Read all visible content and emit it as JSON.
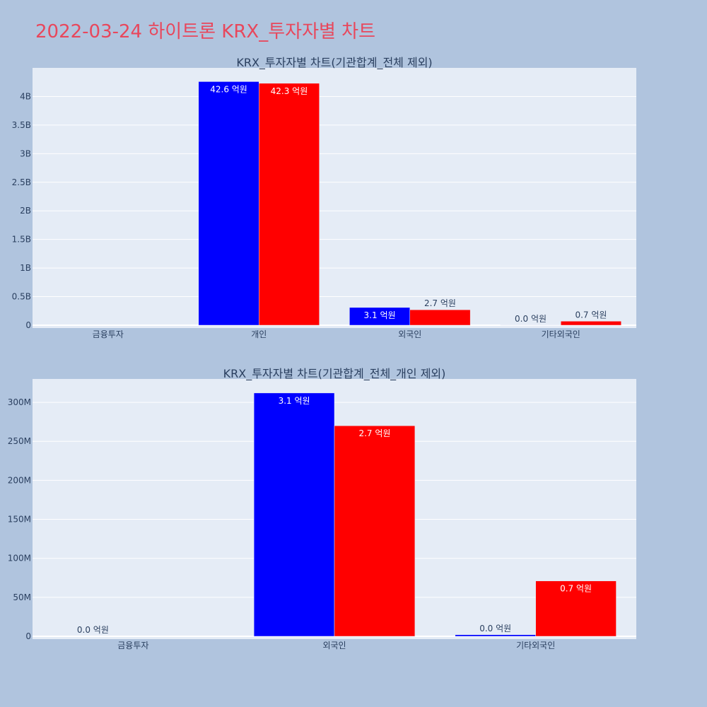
{
  "page": {
    "title": "2022-03-24 하이트론 KRX_투자자별 차트"
  },
  "colors": {
    "buy": "#0000ff",
    "sell": "#ff0000",
    "plot_bg": "#e5ecf6",
    "paper_bg": "#b0c4de",
    "title": "#e8475c"
  },
  "chart_data": [
    {
      "type": "bar",
      "title": "KRX_투자자별 차트(기관합계_전체 제외)",
      "categories": [
        "금융투자",
        "개인",
        "외국인",
        "기타외국인"
      ],
      "ylim": [
        0,
        4500000000
      ],
      "yticks": [
        0,
        500000000,
        1000000000,
        1500000000,
        2000000000,
        2500000000,
        3000000000,
        3500000000,
        4000000000
      ],
      "ytick_labels": [
        "0",
        "0.5B",
        "1B",
        "1.5B",
        "2B",
        "2.5B",
        "3B",
        "3.5B",
        "4B"
      ],
      "grid": true,
      "series": [
        {
          "color": "#0000ff",
          "values": [
            0,
            4260000000,
            310000000,
            2000000
          ],
          "labels": [
            "",
            "42.6 억원",
            "3.1 억원",
            "0.0 억원"
          ]
        },
        {
          "color": "#ff0000",
          "values": [
            0,
            4230000000,
            270000000,
            70000000
          ],
          "labels": [
            "",
            "42.3 억원",
            "2.7 억원",
            "0.7 억원"
          ]
        }
      ]
    },
    {
      "type": "bar",
      "title": "KRX_투자자별 차트(기관합계_전체_개인 제외)",
      "categories": [
        "금융투자",
        "외국인",
        "기타외국인"
      ],
      "ylim": [
        0,
        330000000
      ],
      "yticks": [
        0,
        50000000,
        100000000,
        150000000,
        200000000,
        250000000,
        300000000
      ],
      "ytick_labels": [
        "0",
        "50M",
        "100M",
        "150M",
        "200M",
        "250M",
        "300M"
      ],
      "grid": true,
      "series": [
        {
          "color": "#0000ff",
          "values": [
            0,
            312000000,
            2000000
          ],
          "labels": [
            "0.0 억원",
            "3.1 억원",
            "0.0 억원"
          ]
        },
        {
          "color": "#ff0000",
          "values": [
            0,
            270000000,
            71000000
          ],
          "labels": [
            "",
            "2.7 억원",
            "0.7 억원"
          ]
        }
      ]
    }
  ]
}
